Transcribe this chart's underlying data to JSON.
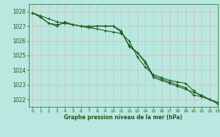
{
  "title": "Graphe pression niveau de la mer (hPa)",
  "background_color": "#b8e8e0",
  "grid_color": "#e8b0b0",
  "line_color": "#1a5c1a",
  "tick_color": "#1a5c1a",
  "xlim": [
    -0.5,
    23
  ],
  "ylim": [
    1021.5,
    1028.5
  ],
  "yticks": [
    1022,
    1023,
    1024,
    1025,
    1026,
    1027,
    1028
  ],
  "xticks": [
    0,
    1,
    2,
    3,
    4,
    5,
    6,
    7,
    8,
    9,
    10,
    11,
    12,
    13,
    14,
    15,
    16,
    17,
    18,
    19,
    20,
    21,
    22,
    23
  ],
  "figsize": [
    3.2,
    2.0
  ],
  "dpi": 100,
  "series": [
    [
      1027.9,
      1027.7,
      1027.5,
      1027.3,
      1027.2,
      1027.1,
      1027.0,
      1027.0,
      1027.0,
      1027.0,
      1027.0,
      1026.7,
      1025.6,
      1025.2,
      1024.5,
      1023.5,
      1023.3,
      1023.1,
      1022.9,
      1022.7,
      1022.5,
      1022.3,
      1022.0,
      1021.8
    ],
    [
      1027.9,
      1027.6,
      1027.2,
      1027.1,
      1027.2,
      1027.1,
      1027.0,
      1026.9,
      1026.8,
      1026.7,
      1026.6,
      1026.5,
      1026.0,
      1024.9,
      1024.2,
      1023.7,
      1023.5,
      1023.3,
      1023.2,
      1023.1,
      1022.6,
      1022.2,
      1022.0,
      1021.8
    ],
    [
      1027.9,
      1027.6,
      1027.2,
      1027.0,
      1027.3,
      1027.1,
      1027.0,
      1026.9,
      1027.0,
      1027.0,
      1027.0,
      1026.6,
      1025.7,
      1025.2,
      1024.6,
      1023.6,
      1023.4,
      1023.2,
      1023.0,
      1022.8,
      1022.3,
      1022.2,
      1022.0,
      1021.7
    ]
  ]
}
